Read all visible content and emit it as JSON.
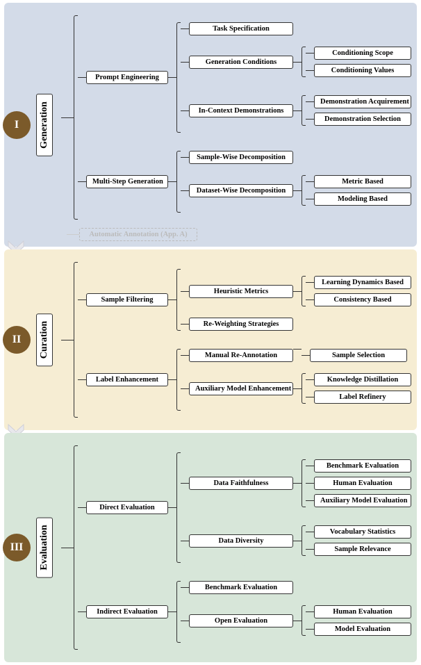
{
  "diagram": {
    "type": "tree",
    "panels": [
      {
        "id": "I",
        "title": "Generation",
        "bg_color": "#d3dbe8",
        "roman_bg": "#7b5a2a",
        "roman_fg": "#ffffff",
        "title_border": "#333333",
        "nodes": {
          "l1": [
            {
              "label": "Prompt Engineering",
              "children": [
                {
                  "label": "Task Specification",
                  "children": []
                },
                {
                  "label": "Generation Conditions",
                  "children": [
                    {
                      "label": "Conditioning Scope"
                    },
                    {
                      "label": "Conditioning Values"
                    }
                  ]
                },
                {
                  "label": "In-Context Demonstrations",
                  "children": [
                    {
                      "label": "Demonstration Acquirement"
                    },
                    {
                      "label": "Demonstration Selection"
                    }
                  ]
                }
              ]
            },
            {
              "label": "Multi-Step Generation",
              "children": [
                {
                  "label": "Sample-Wise Decomposition",
                  "children": []
                },
                {
                  "label": "Dataset-Wise Decomposition",
                  "children": [
                    {
                      "label": "Metric Based"
                    },
                    {
                      "label": "Modeling Based"
                    }
                  ]
                }
              ]
            }
          ],
          "ghost": {
            "label": "Automatic Annotation (App. A)"
          }
        }
      },
      {
        "id": "II",
        "title": "Curation",
        "bg_color": "#f6edd3",
        "roman_bg": "#7b5a2a",
        "roman_fg": "#ffffff",
        "nodes": {
          "l1": [
            {
              "label": "Sample Filtering",
              "children": [
                {
                  "label": "Heuristic Metrics",
                  "children": [
                    {
                      "label": "Learning Dynamics Based"
                    },
                    {
                      "label": "Consistency Based"
                    }
                  ]
                },
                {
                  "label": "Re-Weighting Strategies",
                  "children": []
                }
              ]
            },
            {
              "label": "Label Enhancement",
              "children": [
                {
                  "label": "Manual Re-Annotation",
                  "children": [
                    {
                      "label": "Sample Selection"
                    }
                  ]
                },
                {
                  "label": "Auxiliary Model Enhancement",
                  "children": [
                    {
                      "label": "Knowledge Distillation"
                    },
                    {
                      "label": "Label Refinery"
                    }
                  ]
                }
              ]
            }
          ]
        }
      },
      {
        "id": "III",
        "title": "Evaluation",
        "bg_color": "#d7e6d9",
        "roman_bg": "#7b5a2a",
        "roman_fg": "#ffffff",
        "nodes": {
          "l1": [
            {
              "label": "Direct Evaluation",
              "children": [
                {
                  "label": "Data Faithfulness",
                  "children": [
                    {
                      "label": "Benchmark Evaluation"
                    },
                    {
                      "label": "Human Evaluation"
                    },
                    {
                      "label": "Auxiliary Model Evaluation"
                    }
                  ]
                },
                {
                  "label": "Data Diversity",
                  "children": [
                    {
                      "label": "Vocabulary Statistics"
                    },
                    {
                      "label": "Sample Relevance"
                    }
                  ]
                }
              ]
            },
            {
              "label": "Indirect Evaluation",
              "children": [
                {
                  "label": "Benchmark Evaluation",
                  "children": []
                },
                {
                  "label": "Open Evaluation",
                  "children": [
                    {
                      "label": "Human Evaluation"
                    },
                    {
                      "label": "Model Evaluation"
                    }
                  ]
                }
              ]
            }
          ]
        }
      }
    ],
    "style": {
      "node_border": "#333333",
      "node_bg": "#ffffff",
      "font_size_node": 10.5,
      "font_size_title": 14,
      "font_size_roman": 16,
      "line_color": "#333333",
      "ghost_color": "#bbbbbb",
      "arrow_color": "#e8e8ec"
    },
    "col_widths": {
      "c1": 118,
      "c2": 150,
      "c3": 140
    },
    "line_seg": 12
  }
}
